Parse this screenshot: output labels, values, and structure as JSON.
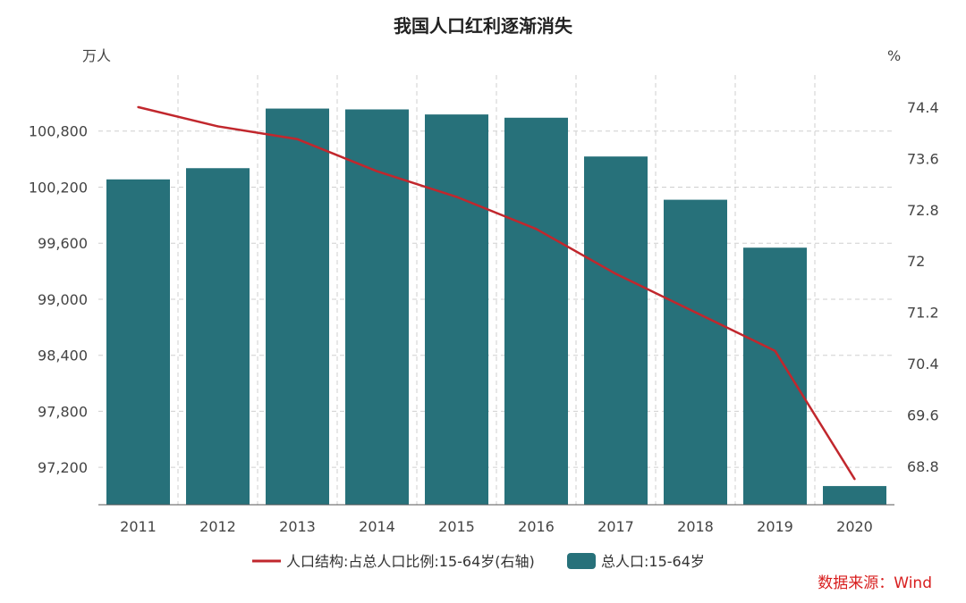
{
  "chart_data": {
    "type": "bar+line",
    "title": "我国人口红利逐渐消失",
    "categories": [
      "2011",
      "2012",
      "2013",
      "2014",
      "2015",
      "2016",
      "2017",
      "2018",
      "2019",
      "2020"
    ],
    "left_axis": {
      "unit": "万人",
      "ylim": [
        96800,
        101400
      ],
      "ticks": [
        97200,
        97800,
        98400,
        99000,
        99600,
        100200,
        100800
      ],
      "tick_labels": [
        "97,200",
        "97,800",
        "98,400",
        "99,000",
        "99,600",
        "100,200",
        "100,800"
      ]
    },
    "right_axis": {
      "unit": "%",
      "ylim": [
        68.2,
        74.9
      ],
      "ticks": [
        68.8,
        69.6,
        70.4,
        71.2,
        72,
        72.8,
        73.6,
        74.4
      ],
      "tick_labels": [
        "68.8",
        "69.6",
        "70.4",
        "71.2",
        "72",
        "72.8",
        "73.6",
        "74.4"
      ]
    },
    "series": [
      {
        "name": "总人口:15-64岁",
        "type": "bar",
        "axis": "left",
        "color": "#27717a",
        "values": [
          100283,
          100403,
          101041,
          101032,
          100978,
          100943,
          100528,
          100065,
          99552,
          97000
        ]
      },
      {
        "name": "人口结构:占总人口比例:15-64岁(右轴)",
        "type": "line",
        "axis": "right",
        "color": "#c1272d",
        "values": [
          74.4,
          74.1,
          73.9,
          73.4,
          73.0,
          72.5,
          71.8,
          71.2,
          70.6,
          68.6
        ]
      }
    ],
    "legend": {
      "position": "bottom-center",
      "entries": [
        "人口结构:占总人口比例:15-64岁(右轴)",
        "总人口:15-64岁"
      ]
    },
    "grid": true
  },
  "source_note": "数据来源：Wind"
}
